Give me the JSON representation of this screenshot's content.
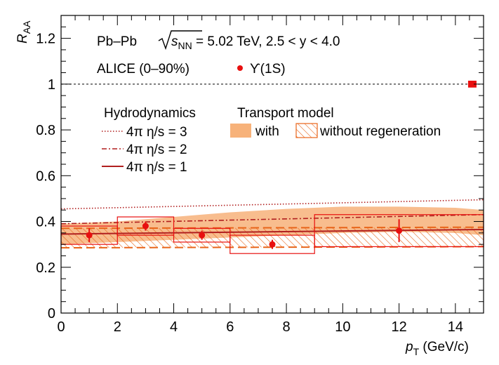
{
  "chart_data": {
    "type": "scatter",
    "xlabel": "p_T (GeV/c)",
    "xlabel_main": "p",
    "xlabel_sub": "T",
    "xlabel_unit": " (GeV/c)",
    "ylabel_main": "R",
    "ylabel_sub": "AA",
    "xlim": [
      0,
      15
    ],
    "ylim": [
      0,
      1.3
    ],
    "xticks": [
      0,
      2,
      4,
      6,
      8,
      10,
      12,
      14
    ],
    "yticks": [
      0,
      0.2,
      0.4,
      0.6,
      0.8,
      1,
      1.2
    ],
    "ytick_labels": [
      "0",
      "0.2",
      "0.4",
      "0.6",
      "0.8",
      "1",
      "1.2"
    ],
    "annotations": {
      "system_prefix": "Pb–Pb",
      "sqrt_s_label": "s",
      "sqrt_s_sub": "NN",
      "system_suffix": " = 5.02 TeV, 2.5 < y < 4.0",
      "experiment": "ALICE (0–90%)",
      "marker_label": "ϒ(1S)"
    },
    "legend_hydro_title": "Hydrodynamics",
    "legend_transport_title": "Transport model",
    "series": [
      {
        "name": "ϒ(1S)",
        "color": "#e8100f",
        "points": [
          {
            "x": 1,
            "xlo": 0,
            "xhi": 2,
            "y": 0.34,
            "stat": 0.03,
            "syst": 0.04
          },
          {
            "x": 3,
            "xlo": 2,
            "xhi": 4,
            "y": 0.38,
            "stat": 0.02,
            "syst": 0.04
          },
          {
            "x": 5,
            "xlo": 4,
            "xhi": 6,
            "y": 0.34,
            "stat": 0.02,
            "syst": 0.03
          },
          {
            "x": 7.5,
            "xlo": 6,
            "xhi": 9,
            "y": 0.3,
            "stat": 0.02,
            "syst": 0.04
          },
          {
            "x": 12,
            "xlo": 9,
            "xhi": 15,
            "y": 0.36,
            "stat": 0.05,
            "syst": 0.07
          }
        ]
      },
      {
        "name": "4π η/s = 3",
        "style": "dotted",
        "color": "#b11f1f",
        "x": [
          0,
          15
        ],
        "y": [
          0.455,
          0.495
        ]
      },
      {
        "name": "4π η/s = 2",
        "style": "dashdot",
        "color": "#b11f1f",
        "x": [
          0,
          15
        ],
        "y": [
          0.39,
          0.43
        ]
      },
      {
        "name": "4π η/s = 1",
        "style": "solid",
        "color": "#b11f1f",
        "x": [
          0,
          15
        ],
        "y": [
          0.345,
          0.365
        ]
      },
      {
        "name": "with",
        "style": "band",
        "color": "#f7b27a",
        "x": [
          0,
          2,
          4,
          6,
          8,
          10,
          12,
          14,
          15
        ],
        "ylo": [
          0.3,
          0.31,
          0.32,
          0.33,
          0.34,
          0.35,
          0.355,
          0.35,
          0.34
        ],
        "yhi": [
          0.39,
          0.4,
          0.42,
          0.44,
          0.455,
          0.465,
          0.465,
          0.46,
          0.45
        ]
      },
      {
        "name": "without regeneration",
        "style": "hatched band",
        "color": "#e8651a",
        "x": [
          0,
          15
        ],
        "ylo": [
          0.285,
          0.29
        ],
        "yhi": [
          0.37,
          0.375
        ]
      }
    ],
    "reference_line": {
      "y": 1
    },
    "global_uncertainty": {
      "x": 14.6,
      "y": 1.0,
      "half_height": 0.015,
      "color": "#e8100f"
    }
  }
}
